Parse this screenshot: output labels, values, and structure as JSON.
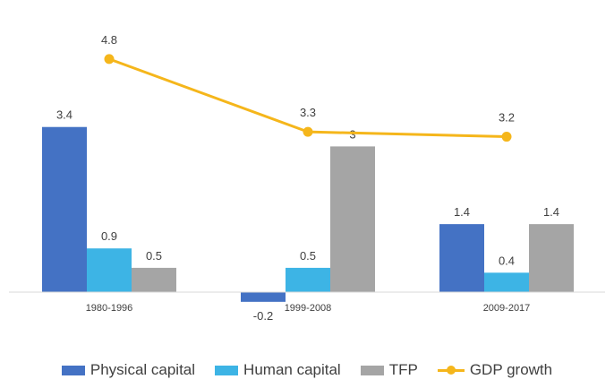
{
  "chart_data": {
    "type": "bar",
    "categories": [
      "1980-1996",
      "1999-2008",
      "2009-2017"
    ],
    "series": [
      {
        "name": "Physical capital",
        "kind": "bar",
        "color": "#4472C4",
        "values": [
          3.4,
          -0.2,
          1.4
        ],
        "labels": [
          "3.4",
          "-0.2",
          "1.4"
        ]
      },
      {
        "name": "Human capital",
        "kind": "bar",
        "color": "#3DB4E5",
        "values": [
          0.9,
          0.5,
          0.4
        ],
        "labels": [
          "0.9",
          "0.5",
          "0.4"
        ]
      },
      {
        "name": "TFP",
        "kind": "bar",
        "color": "#A5A5A5",
        "values": [
          0.5,
          3.0,
          1.4
        ],
        "labels": [
          "0.5",
          "3",
          "1.4"
        ]
      },
      {
        "name": "GDP growth",
        "kind": "line",
        "color": "#F5B61B",
        "values": [
          4.8,
          3.3,
          3.2
        ],
        "labels": [
          "4.8",
          "3.3",
          "3.2"
        ]
      }
    ],
    "title": "",
    "xlabel": "",
    "ylabel": "",
    "ylim": [
      -0.2,
      5.0
    ],
    "grid": false,
    "legend_position": "bottom"
  }
}
